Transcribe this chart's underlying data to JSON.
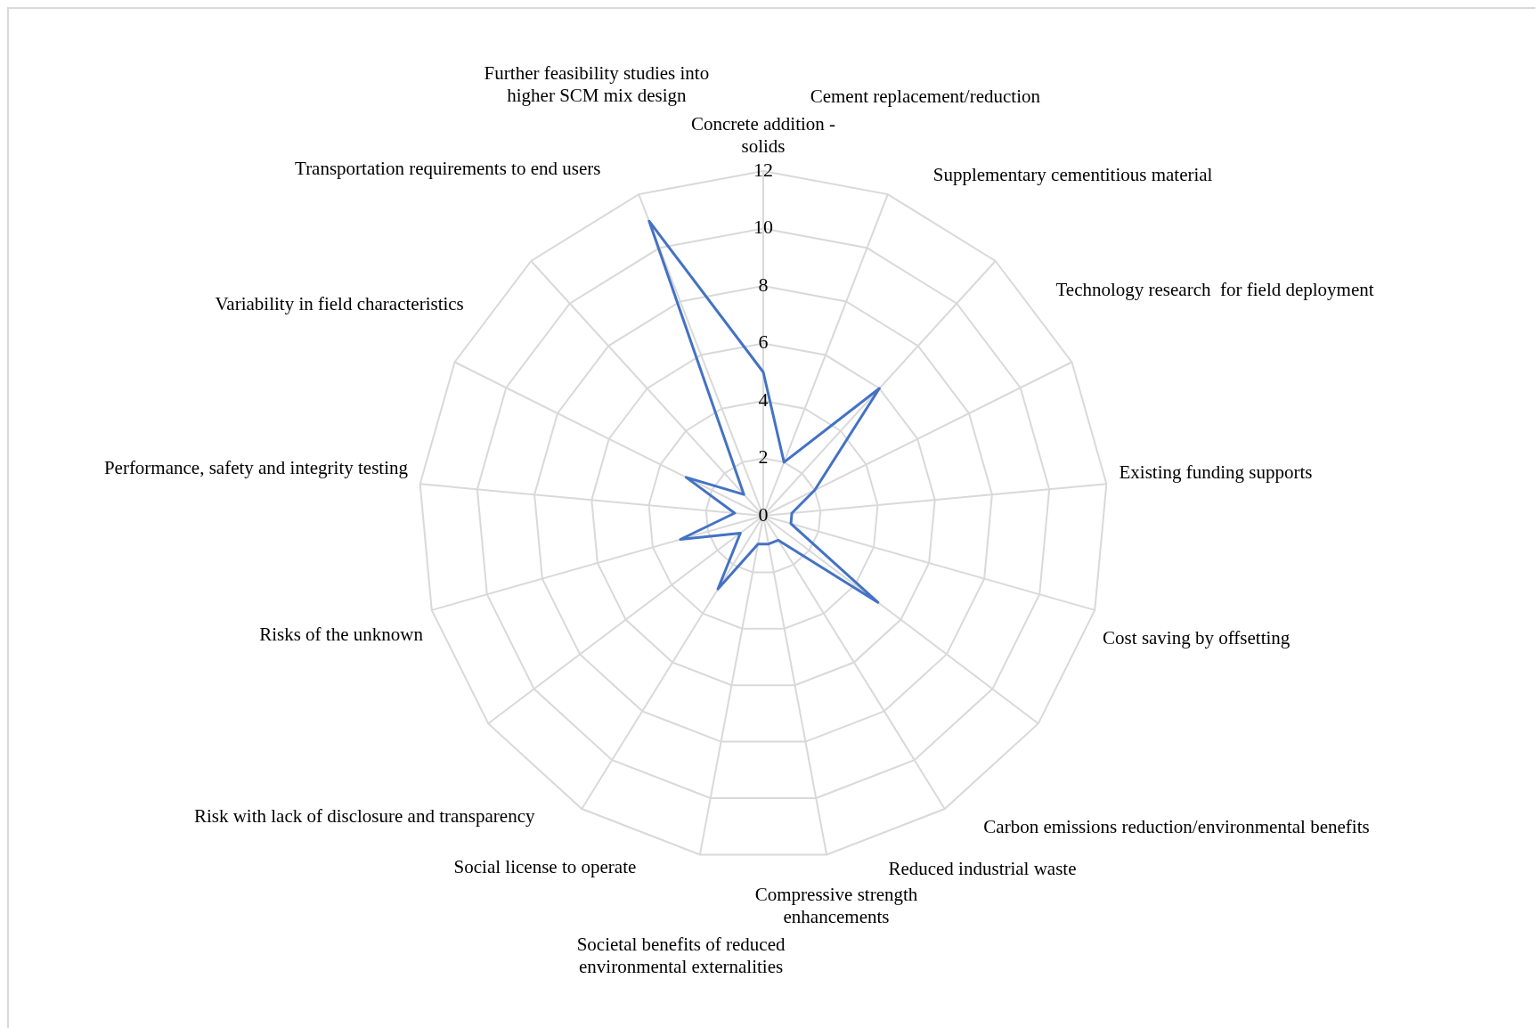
{
  "chart_data": {
    "type": "radar",
    "categories": [
      "Concrete addition - solids",
      "Cement replacement/reduction",
      "Supplementary cementitious material",
      "Technology research  for field deployment",
      "Existing funding supports",
      "Cost saving by offsetting",
      "Carbon emissions reduction/environmental benefits",
      "Reduced industrial waste",
      "Compressive strength enhancements",
      "Societal benefits of reduced environmental externalities",
      "Social license to operate",
      "Risk with lack of disclosure and transparency",
      "Risks of the unknown",
      "Performance, safety and integrity testing",
      "Variability in field characteristics",
      "Transportation requirements to end users",
      "Further feasibility studies into higher SCM mix design"
    ],
    "series": [
      {
        "color": "#4472c4",
        "values": [
          5,
          2,
          6,
          2,
          1,
          1,
          5,
          1,
          1,
          1,
          3,
          1,
          3,
          1,
          3,
          1,
          11
        ]
      }
    ],
    "ylim": [
      0,
      12
    ],
    "yticks": [
      0,
      2,
      4,
      6,
      8,
      10,
      12
    ],
    "grid": true,
    "legend": false,
    "marker": "none",
    "line_style": "solid"
  }
}
